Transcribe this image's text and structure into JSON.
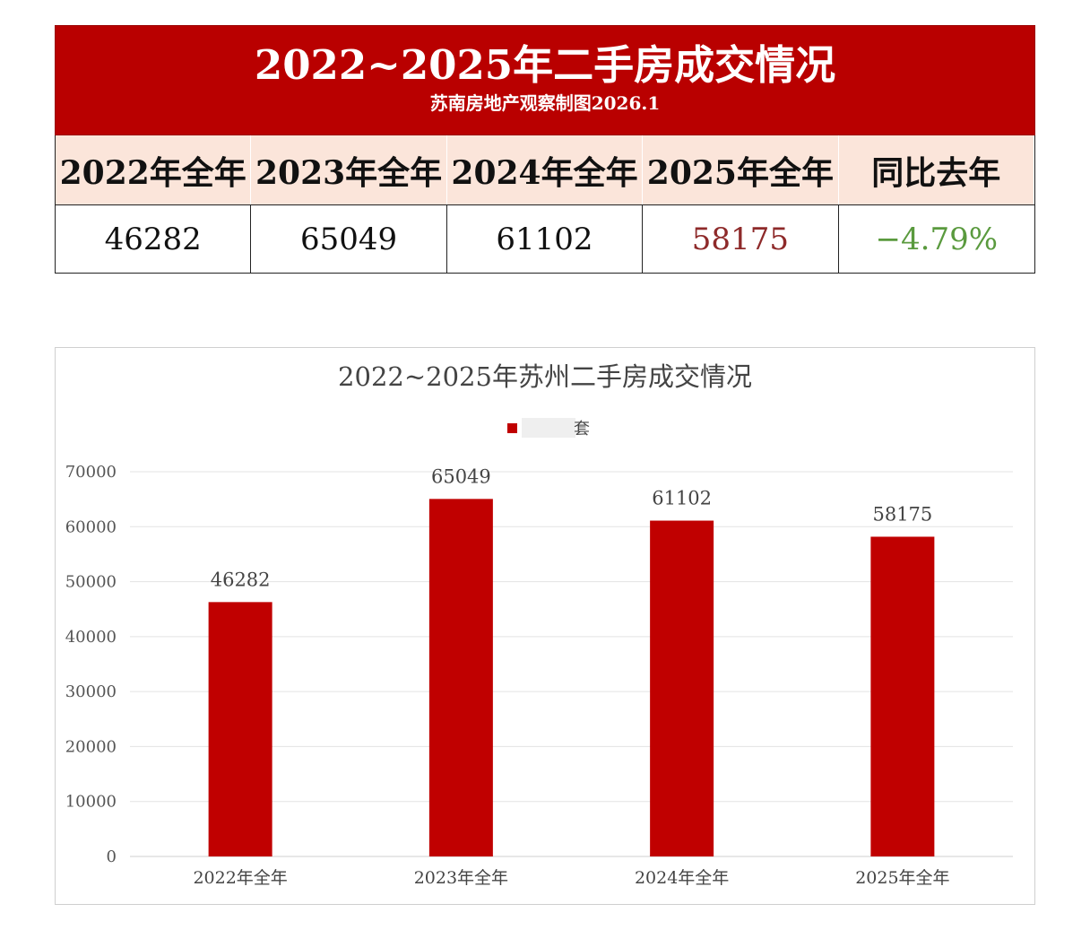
{
  "banner": {
    "title": "2022~2025年二手房成交情况",
    "subtitle": "苏南房地产观察制图2026.1"
  },
  "table": {
    "headers": [
      "2022年全年",
      "2023年全年",
      "2024年全年",
      "2025年全年",
      "同比去年"
    ],
    "values": [
      "46282",
      "65049",
      "61102",
      "58175",
      "−4.79%"
    ],
    "value_colors": [
      "#111111",
      "#111111",
      "#111111",
      "#8e2a2a",
      "#5a9a3e"
    ]
  },
  "colors": {
    "brand_red": "#b90000",
    "header_fill": "#fbe5da",
    "highlight_value": "#8e2a2a",
    "yoy_value": "#5a9a3e"
  },
  "chart_data": {
    "type": "bar",
    "title": "2022~2025年苏州二手房成交情况",
    "categories": [
      "2022年全年",
      "2023年全年",
      "2024年全年",
      "2025年全年"
    ],
    "series": [
      {
        "values": [
          46282,
          65049,
          61102,
          58175
        ],
        "color": "#c00000"
      }
    ],
    "data_labels": [
      "46282",
      "65049",
      "61102",
      "58175"
    ],
    "ylim": [
      0,
      70000
    ],
    "yticks": [
      0,
      10000,
      20000,
      30000,
      40000,
      50000,
      60000,
      70000
    ],
    "grid": true,
    "legend": "top",
    "legend_text": "套"
  }
}
